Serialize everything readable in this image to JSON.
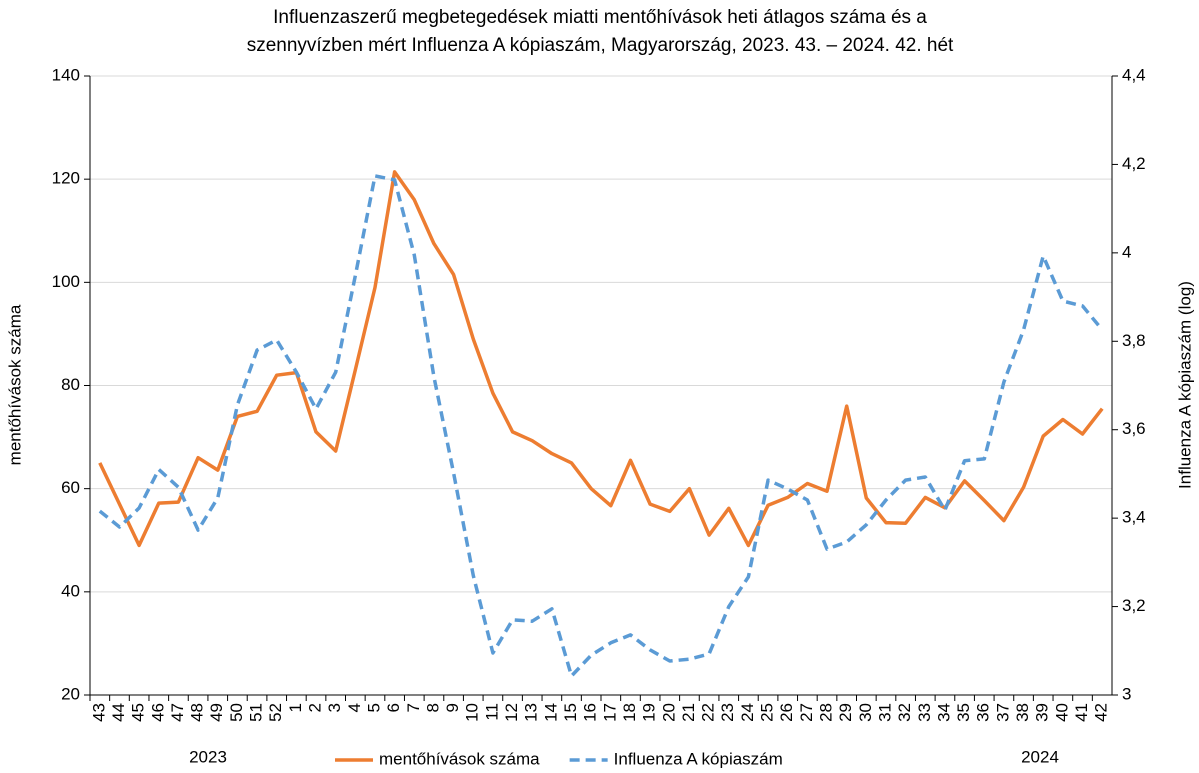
{
  "chart_data": {
    "type": "line",
    "title": [
      "Influenzaszerű megbetegedések miatti mentőhívások heti átlagos száma és a",
      "szennyvízben mért Influenza A kópiaszám, Magyarország, 2023. 43. – 2024. 42. hét"
    ],
    "ylabel": "mentőhívások száma",
    "y2label": "Influenza A kópiaszám (log)",
    "annotations": [
      "2023",
      "2024"
    ],
    "categories": [
      "43",
      "44",
      "45",
      "46",
      "47",
      "48",
      "49",
      "50",
      "51",
      "52",
      "1",
      "2",
      "3",
      "4",
      "5",
      "6",
      "7",
      "8",
      "9",
      "10",
      "11",
      "12",
      "13",
      "14",
      "15",
      "16",
      "17",
      "18",
      "19",
      "20",
      "21",
      "22",
      "23",
      "24",
      "25",
      "26",
      "27",
      "28",
      "29",
      "30",
      "31",
      "32",
      "33",
      "34",
      "35",
      "36",
      "37",
      "38",
      "39",
      "40",
      "41",
      "42"
    ],
    "series": [
      {
        "name": "mentőhívások száma",
        "color": "#ed7d31",
        "dash": false,
        "values": [
          65,
          57,
          49,
          57.2,
          57.4,
          66,
          63.6,
          74,
          75,
          82,
          82.5,
          71,
          67.3,
          83,
          99,
          121.4,
          116,
          107.5,
          101.5,
          89,
          78.5,
          71,
          69.3,
          66.8,
          65,
          60,
          56.7,
          65.5,
          57,
          55.6,
          60,
          51,
          56.2,
          49,
          56.8,
          58.3,
          61,
          59.5,
          76,
          58.2,
          53.4,
          53.3,
          58.3,
          56.3,
          61.5,
          57.7,
          53.8,
          60.3,
          70.2,
          73.4,
          70.6,
          75.5
        ]
      },
      {
        "name": "Influenza A kópiaszám",
        "color": "#5b9bd5",
        "dash": true,
        "axis": "y2",
        "values": [
          3.416,
          3.38,
          3.423,
          3.51,
          3.47,
          3.373,
          3.446,
          3.656,
          3.78,
          3.803,
          3.73,
          3.647,
          3.73,
          3.948,
          4.174,
          4.165,
          3.995,
          3.72,
          3.502,
          3.27,
          3.095,
          3.17,
          3.167,
          3.195,
          3.043,
          3.09,
          3.118,
          3.136,
          3.102,
          3.077,
          3.081,
          3.093,
          3.2,
          3.267,
          3.486,
          3.466,
          3.441,
          3.33,
          3.346,
          3.385,
          3.441,
          3.486,
          3.493,
          3.418,
          3.53,
          3.534,
          3.708,
          3.826,
          3.993,
          3.891,
          3.88,
          3.826
        ]
      }
    ],
    "ylim": [
      20,
      140
    ],
    "yticks": [
      20,
      40,
      60,
      80,
      100,
      120,
      140
    ],
    "y2lim": [
      3,
      4.4
    ],
    "y2ticks": [
      3,
      {
        "value": 3.2,
        "label": "3,2"
      },
      {
        "value": 3.4,
        "label": "3,4"
      },
      {
        "value": 3.6,
        "label": "3,6"
      },
      {
        "value": 3.8,
        "label": "3,8"
      },
      4,
      {
        "value": 4.2,
        "label": "4,2"
      },
      {
        "value": 4.4,
        "label": "4,4"
      }
    ],
    "grid": true,
    "legend": "bottom"
  }
}
